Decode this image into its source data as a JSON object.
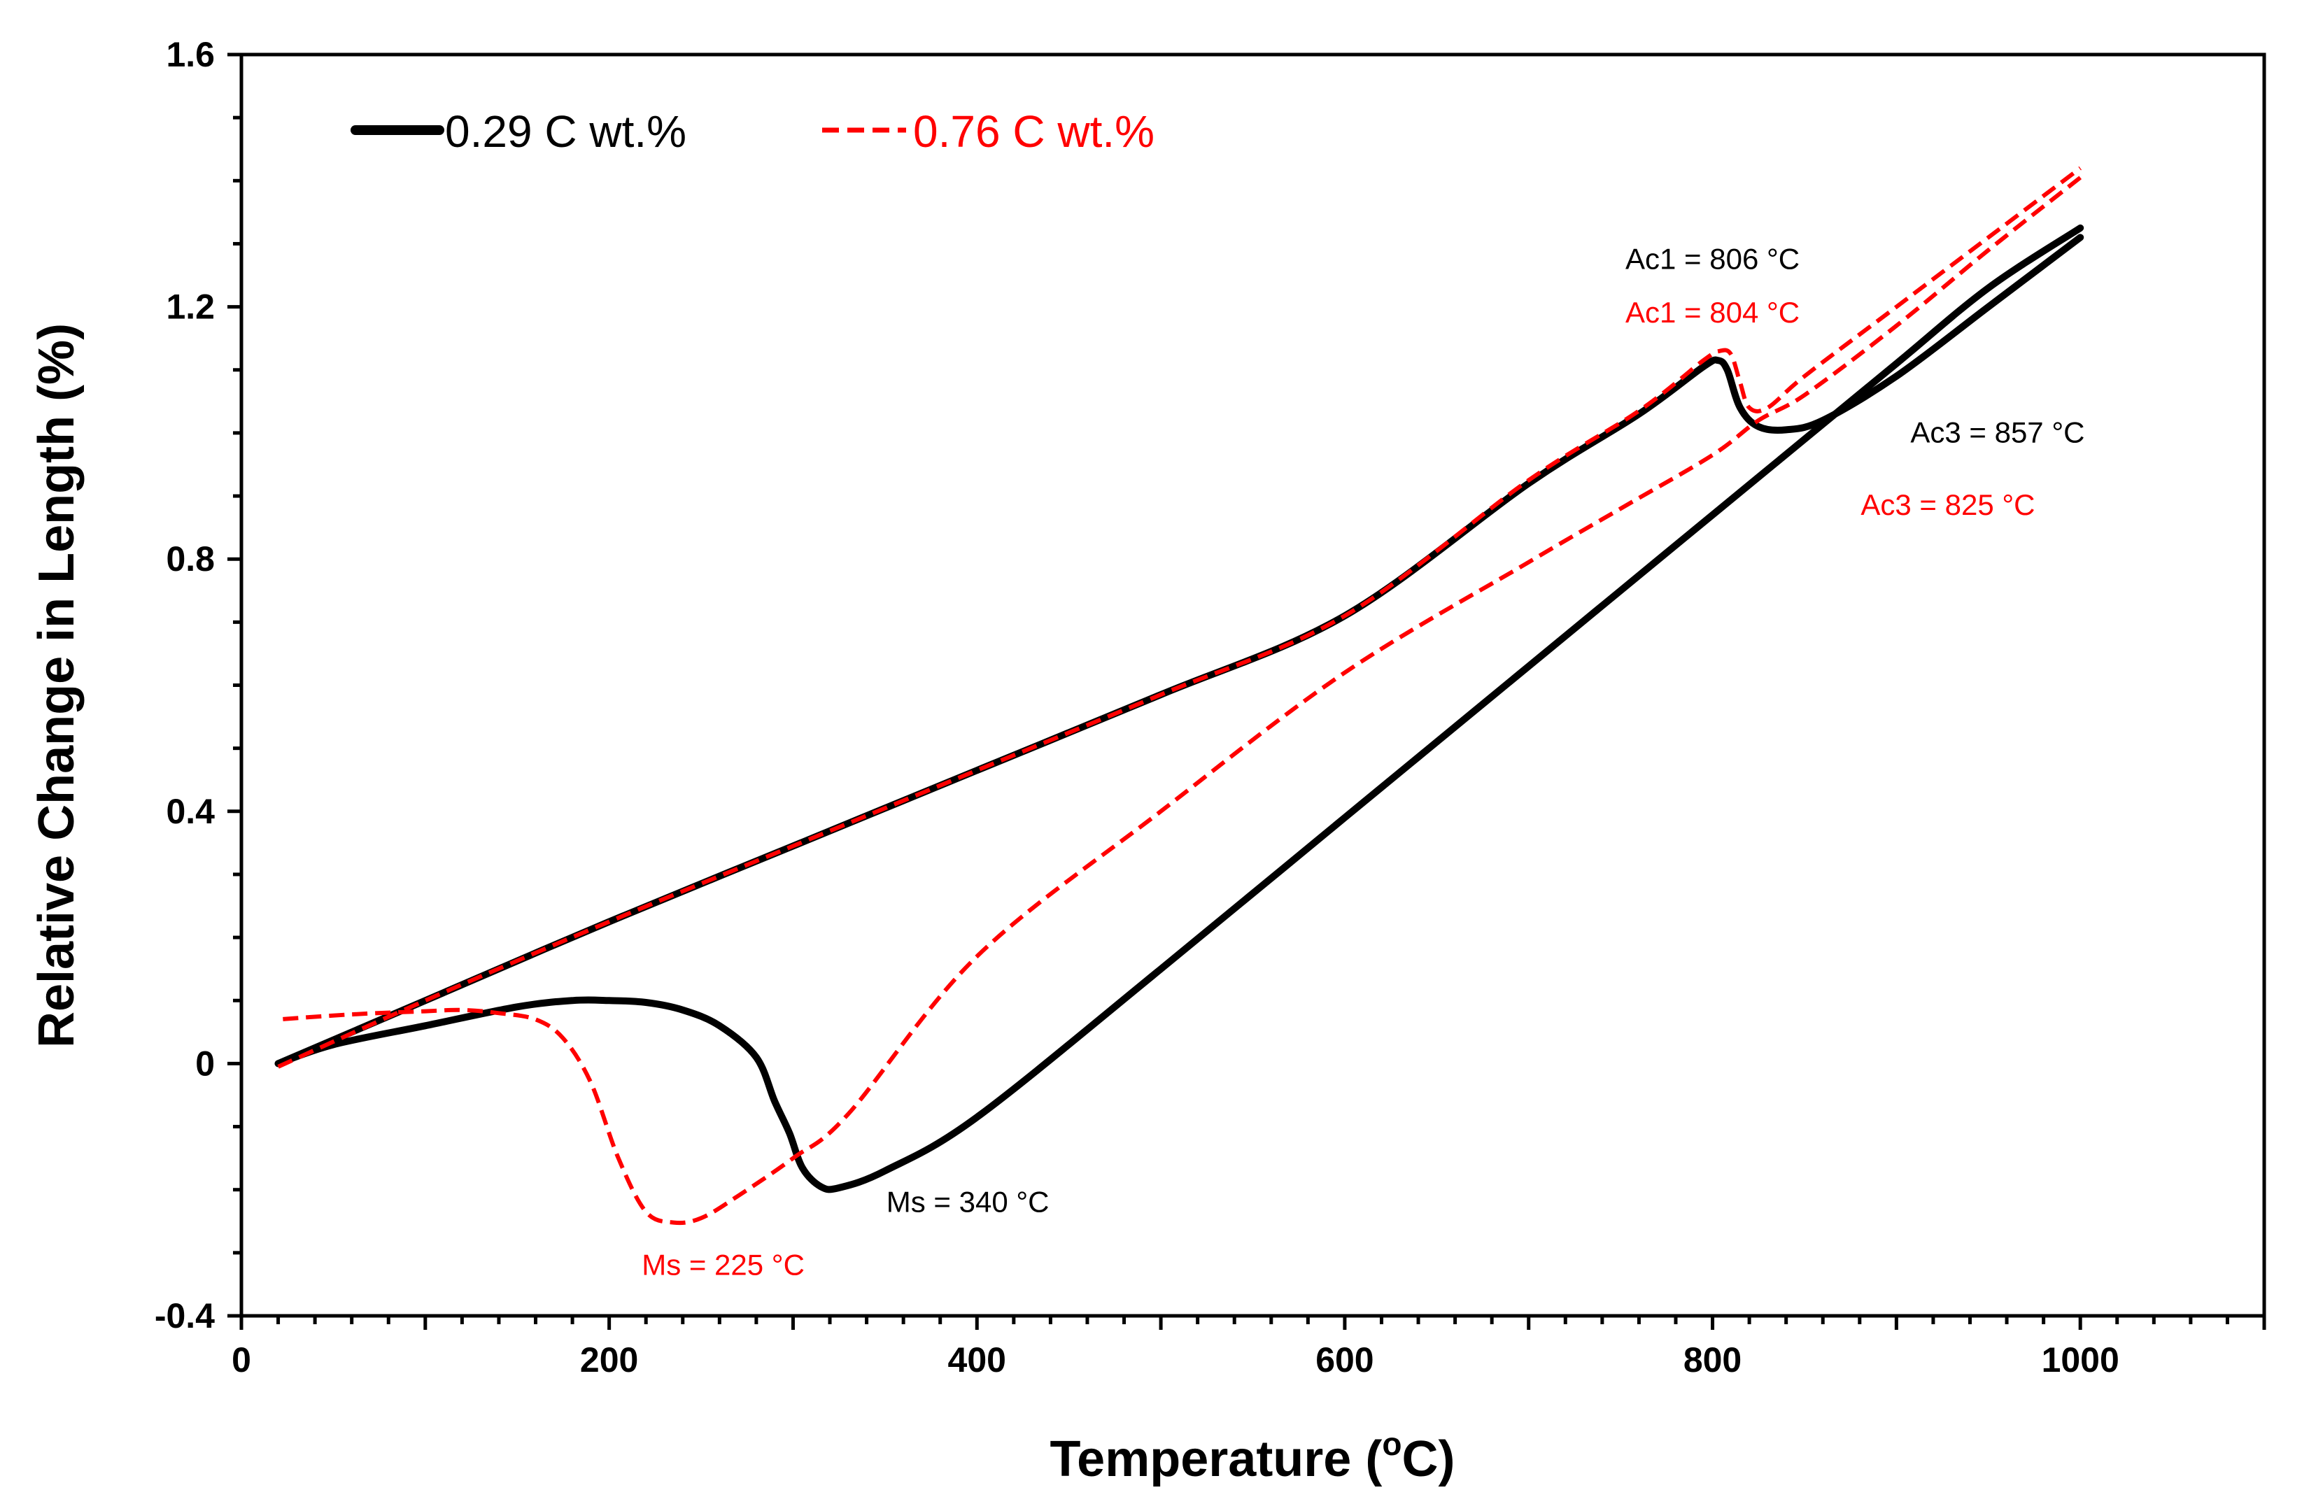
{
  "chart_data": {
    "type": "line",
    "title": "",
    "xlabel": "Temperature (",
    "xlabel_sup": "o",
    "xlabel_tail": "C)",
    "ylabel": "Relative Change in Length (%)",
    "xlim": [
      0,
      1100
    ],
    "ylim": [
      -0.4,
      1.6
    ],
    "x_ticks": [
      0,
      200,
      400,
      600,
      800,
      1000
    ],
    "x_tick_labels": [
      "0",
      "200",
      "400",
      "600",
      "800",
      "1000"
    ],
    "y_ticks": [
      -0.4,
      0,
      0.4,
      0.8,
      1.2,
      1.6
    ],
    "y_tick_labels": [
      "-0.4",
      "0",
      "0.4",
      "0.8",
      "1.2",
      "1.6"
    ],
    "grid": false,
    "legend_position": "top-left",
    "colors": {
      "series_0": "#000000",
      "series_1": "#ff0000"
    },
    "series": [
      {
        "name": "0.29 C wt.%",
        "line_style": "solid",
        "color": "#000000",
        "heating": {
          "x": [
            20,
            100,
            200,
            300,
            400,
            500,
            600,
            700,
            760,
            795,
            803,
            808,
            815,
            825,
            840,
            860,
            900,
            950,
            1000
          ],
          "y": [
            0,
            0.1,
            0.225,
            0.345,
            0.465,
            0.585,
            0.71,
            0.92,
            1.03,
            1.105,
            1.115,
            1.1,
            1.04,
            1.01,
            1.005,
            1.02,
            1.09,
            1.2,
            1.31
          ]
        },
        "cooling": {
          "x": [
            1000,
            950,
            900,
            850,
            800,
            750,
            700,
            600,
            500,
            400,
            350,
            325,
            315,
            305,
            298,
            290,
            280,
            260,
            240,
            220,
            200,
            180,
            150,
            100,
            50,
            20
          ],
          "y": [
            1.325,
            1.23,
            1.11,
            0.99,
            0.87,
            0.75,
            0.63,
            0.39,
            0.15,
            -0.085,
            -0.17,
            -0.197,
            -0.195,
            -0.165,
            -0.11,
            -0.06,
            0.01,
            0.06,
            0.085,
            0.097,
            0.1,
            0.1,
            0.09,
            0.06,
            0.03,
            0.0
          ]
        }
      },
      {
        "name": "0.76 C wt.%",
        "line_style": "dashed",
        "color": "#ff0000",
        "heating": {
          "x": [
            20,
            100,
            200,
            300,
            400,
            500,
            600,
            700,
            760,
            795,
            804,
            810,
            815,
            820,
            830,
            850,
            900,
            950,
            1000
          ],
          "y": [
            -0.005,
            0.1,
            0.225,
            0.345,
            0.465,
            0.585,
            0.71,
            0.925,
            1.035,
            1.115,
            1.13,
            1.125,
            1.08,
            1.04,
            1.04,
            1.09,
            1.2,
            1.31,
            1.42
          ]
        },
        "cooling": {
          "x": [
            1000,
            950,
            900,
            850,
            825,
            800,
            750,
            700,
            600,
            500,
            400,
            330,
            300,
            270,
            250,
            235,
            220,
            205,
            190,
            175,
            160,
            140,
            120,
            100,
            60,
            20
          ],
          "y": [
            1.405,
            1.29,
            1.17,
            1.06,
            1.02,
            0.965,
            0.88,
            0.795,
            0.62,
            0.4,
            0.17,
            -0.08,
            -0.15,
            -0.21,
            -0.245,
            -0.252,
            -0.235,
            -0.15,
            -0.03,
            0.04,
            0.07,
            0.08,
            0.085,
            0.083,
            0.078,
            0.07
          ]
        }
      }
    ],
    "annotations": [
      {
        "text": "Ac1 = 806 °C",
        "color": "#000000",
        "x": 800,
        "y": 1.26
      },
      {
        "text": "Ac1 = 804 °C",
        "color": "#ff0000",
        "x": 800,
        "y": 1.175
      },
      {
        "text": "Ac3 = 857 °C",
        "color": "#000000",
        "x": 955,
        "y": 0.985
      },
      {
        "text": "Ac3 = 825 °C",
        "color": "#ff0000",
        "x": 928,
        "y": 0.87
      },
      {
        "text": "Ms  = 340 °C",
        "color": "#000000",
        "x": 395,
        "y": -0.235
      },
      {
        "text": "Ms = 225 °C",
        "color": "#ff0000",
        "x": 262,
        "y": -0.335
      }
    ]
  }
}
